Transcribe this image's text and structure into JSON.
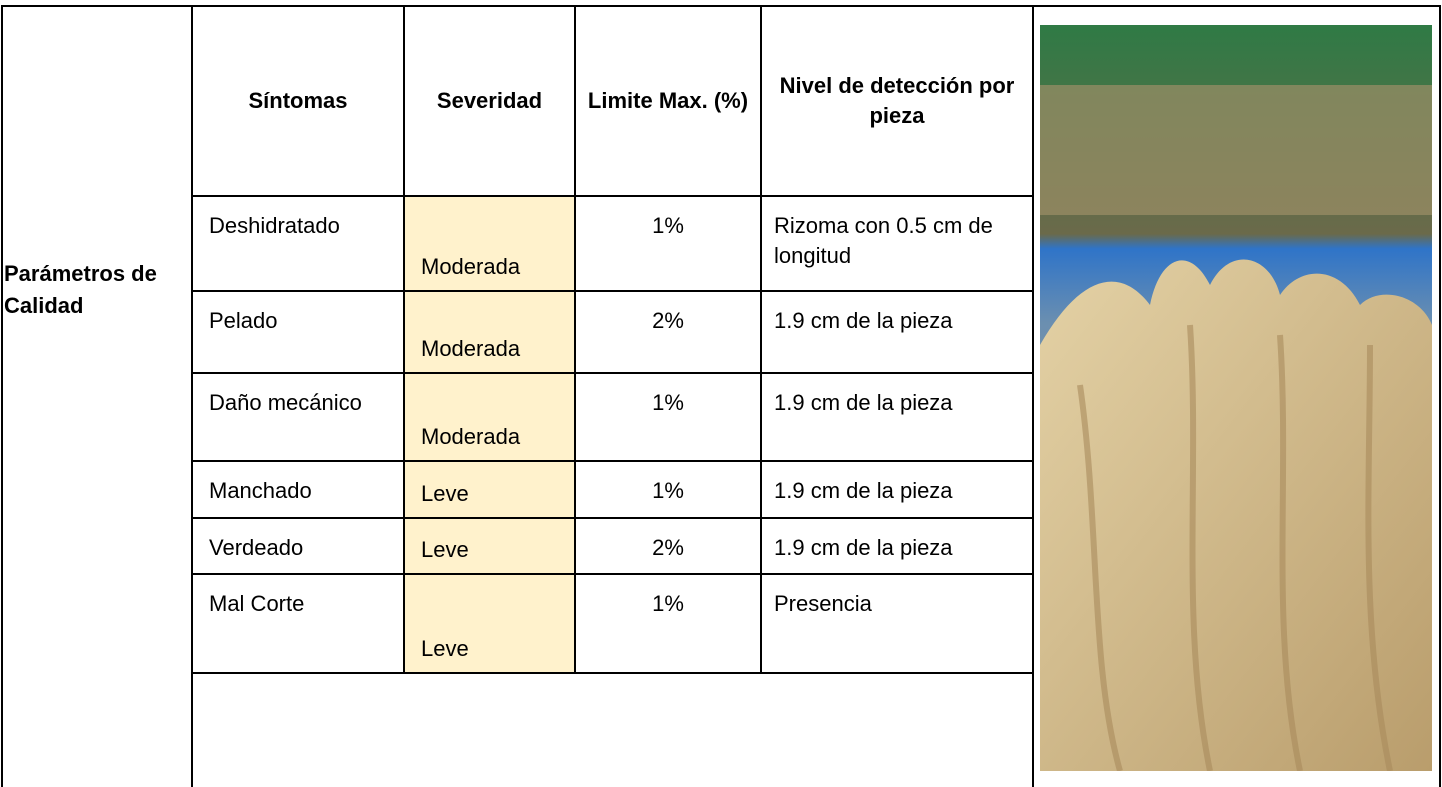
{
  "header": {
    "row_label": "Parámetros de Calidad"
  },
  "table": {
    "headers": [
      "Síntomas",
      "Severidad",
      "Limite Max. (%)",
      "Nivel de detección por pieza"
    ],
    "rows": [
      [
        "Deshidratado",
        "Moderada",
        "1%",
        "Rizoma con 0.5 cm de longitud"
      ],
      [
        "Pelado",
        "Moderada",
        "2%",
        "1.9 cm de la pieza"
      ],
      [
        "Daño mecánico",
        "Moderada",
        "1%",
        "1.9 cm de la pieza"
      ],
      [
        "Manchado",
        "Leve",
        "1%",
        "1.9 cm de la pieza"
      ],
      [
        "Verdeado",
        "Leve",
        "2%",
        "1.9 cm de la pieza"
      ],
      [
        "Mal Corte",
        "Leve",
        "1%",
        "Presencia"
      ]
    ]
  }
}
